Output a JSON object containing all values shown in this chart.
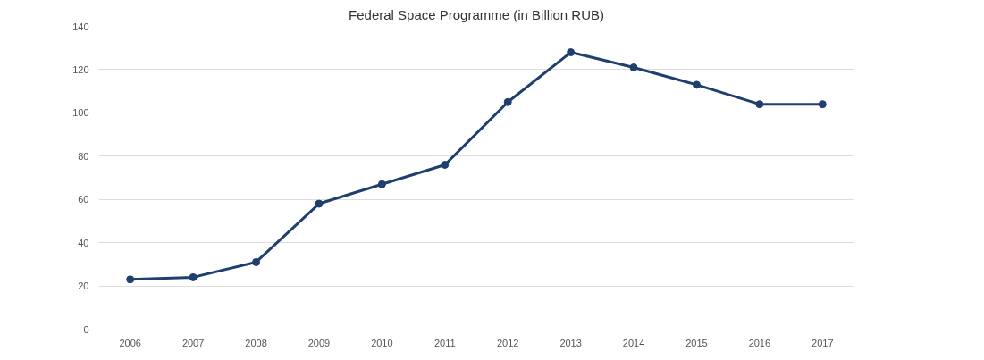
{
  "chart_data": {
    "type": "line",
    "title": "Federal Space Programme (in Billion RUB)",
    "categories": [
      "2006",
      "2007",
      "2008",
      "2009",
      "2010",
      "2011",
      "2012",
      "2013",
      "2014",
      "2015",
      "2016",
      "2017"
    ],
    "series": [
      {
        "color": "#1f3f6e",
        "values": [
          23,
          24,
          31,
          58,
          67,
          76,
          105,
          128,
          121,
          113,
          104,
          104
        ]
      }
    ],
    "ylim": [
      0,
      140
    ],
    "yticks": [
      0,
      20,
      40,
      60,
      80,
      100,
      120,
      140
    ],
    "grid": "y",
    "marker": "circle",
    "line_style": "solid"
  }
}
